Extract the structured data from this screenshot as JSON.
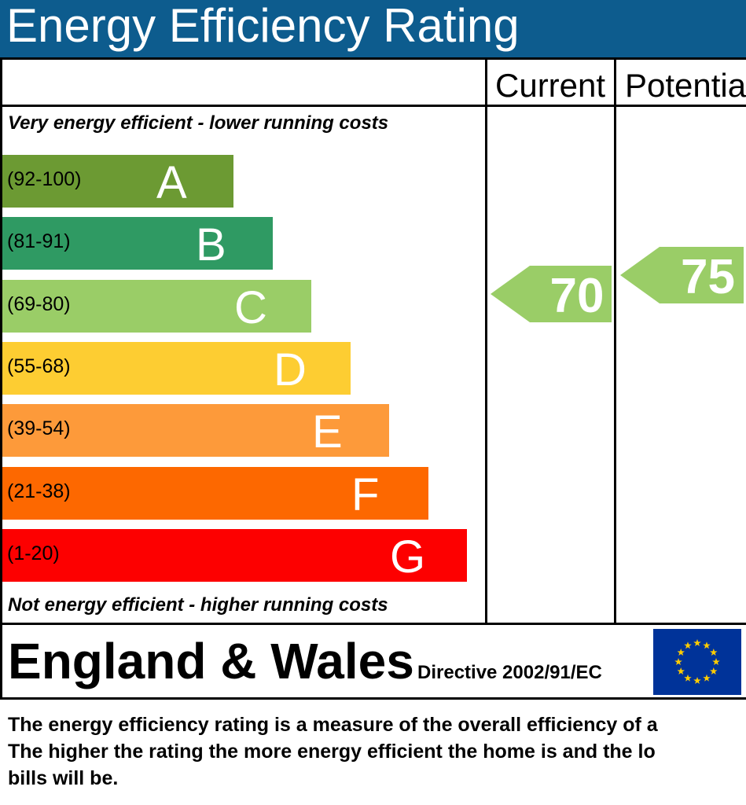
{
  "header": {
    "title": "Energy Efficiency Rating"
  },
  "columns": {
    "current": "Current",
    "potential": "Potentia"
  },
  "captions": {
    "top": "Very energy efficient - lower running costs",
    "bottom": "Not energy efficient - higher running costs"
  },
  "chart_data": {
    "type": "bar",
    "title": "Energy Efficiency Rating",
    "categories": [
      "A",
      "B",
      "C",
      "D",
      "E",
      "F",
      "G"
    ],
    "bands": [
      {
        "letter": "A",
        "range": "(92-100)",
        "color": "#6c9a33"
      },
      {
        "letter": "B",
        "range": "(81-91)",
        "color": "#2f9a63"
      },
      {
        "letter": "C",
        "range": "(69-80)",
        "color": "#9acd67"
      },
      {
        "letter": "D",
        "range": "(55-68)",
        "color": "#fdcd32"
      },
      {
        "letter": "E",
        "range": "(39-54)",
        "color": "#fd9a3a"
      },
      {
        "letter": "F",
        "range": "(21-38)",
        "color": "#fd6800"
      },
      {
        "letter": "G",
        "range": "(1-20)",
        "color": "#fd0000"
      }
    ],
    "ratings": [
      {
        "column": "Current",
        "value": 70,
        "band": "C",
        "color": "#9acd67"
      },
      {
        "column": "Potential",
        "value": 75,
        "band": "C",
        "color": "#9acd67"
      }
    ]
  },
  "footer": {
    "region": "England & Wales",
    "directive": "Directive 2002/91/EC",
    "flag_icon": "eu-flag-icon",
    "flag_color": "#003399",
    "star_color": "#ffcc00"
  },
  "description": [
    "The energy efficiency rating is a measure of the overall efficiency of a",
    "The higher the rating the more energy efficient the home is and the lo",
    "bills will be."
  ]
}
